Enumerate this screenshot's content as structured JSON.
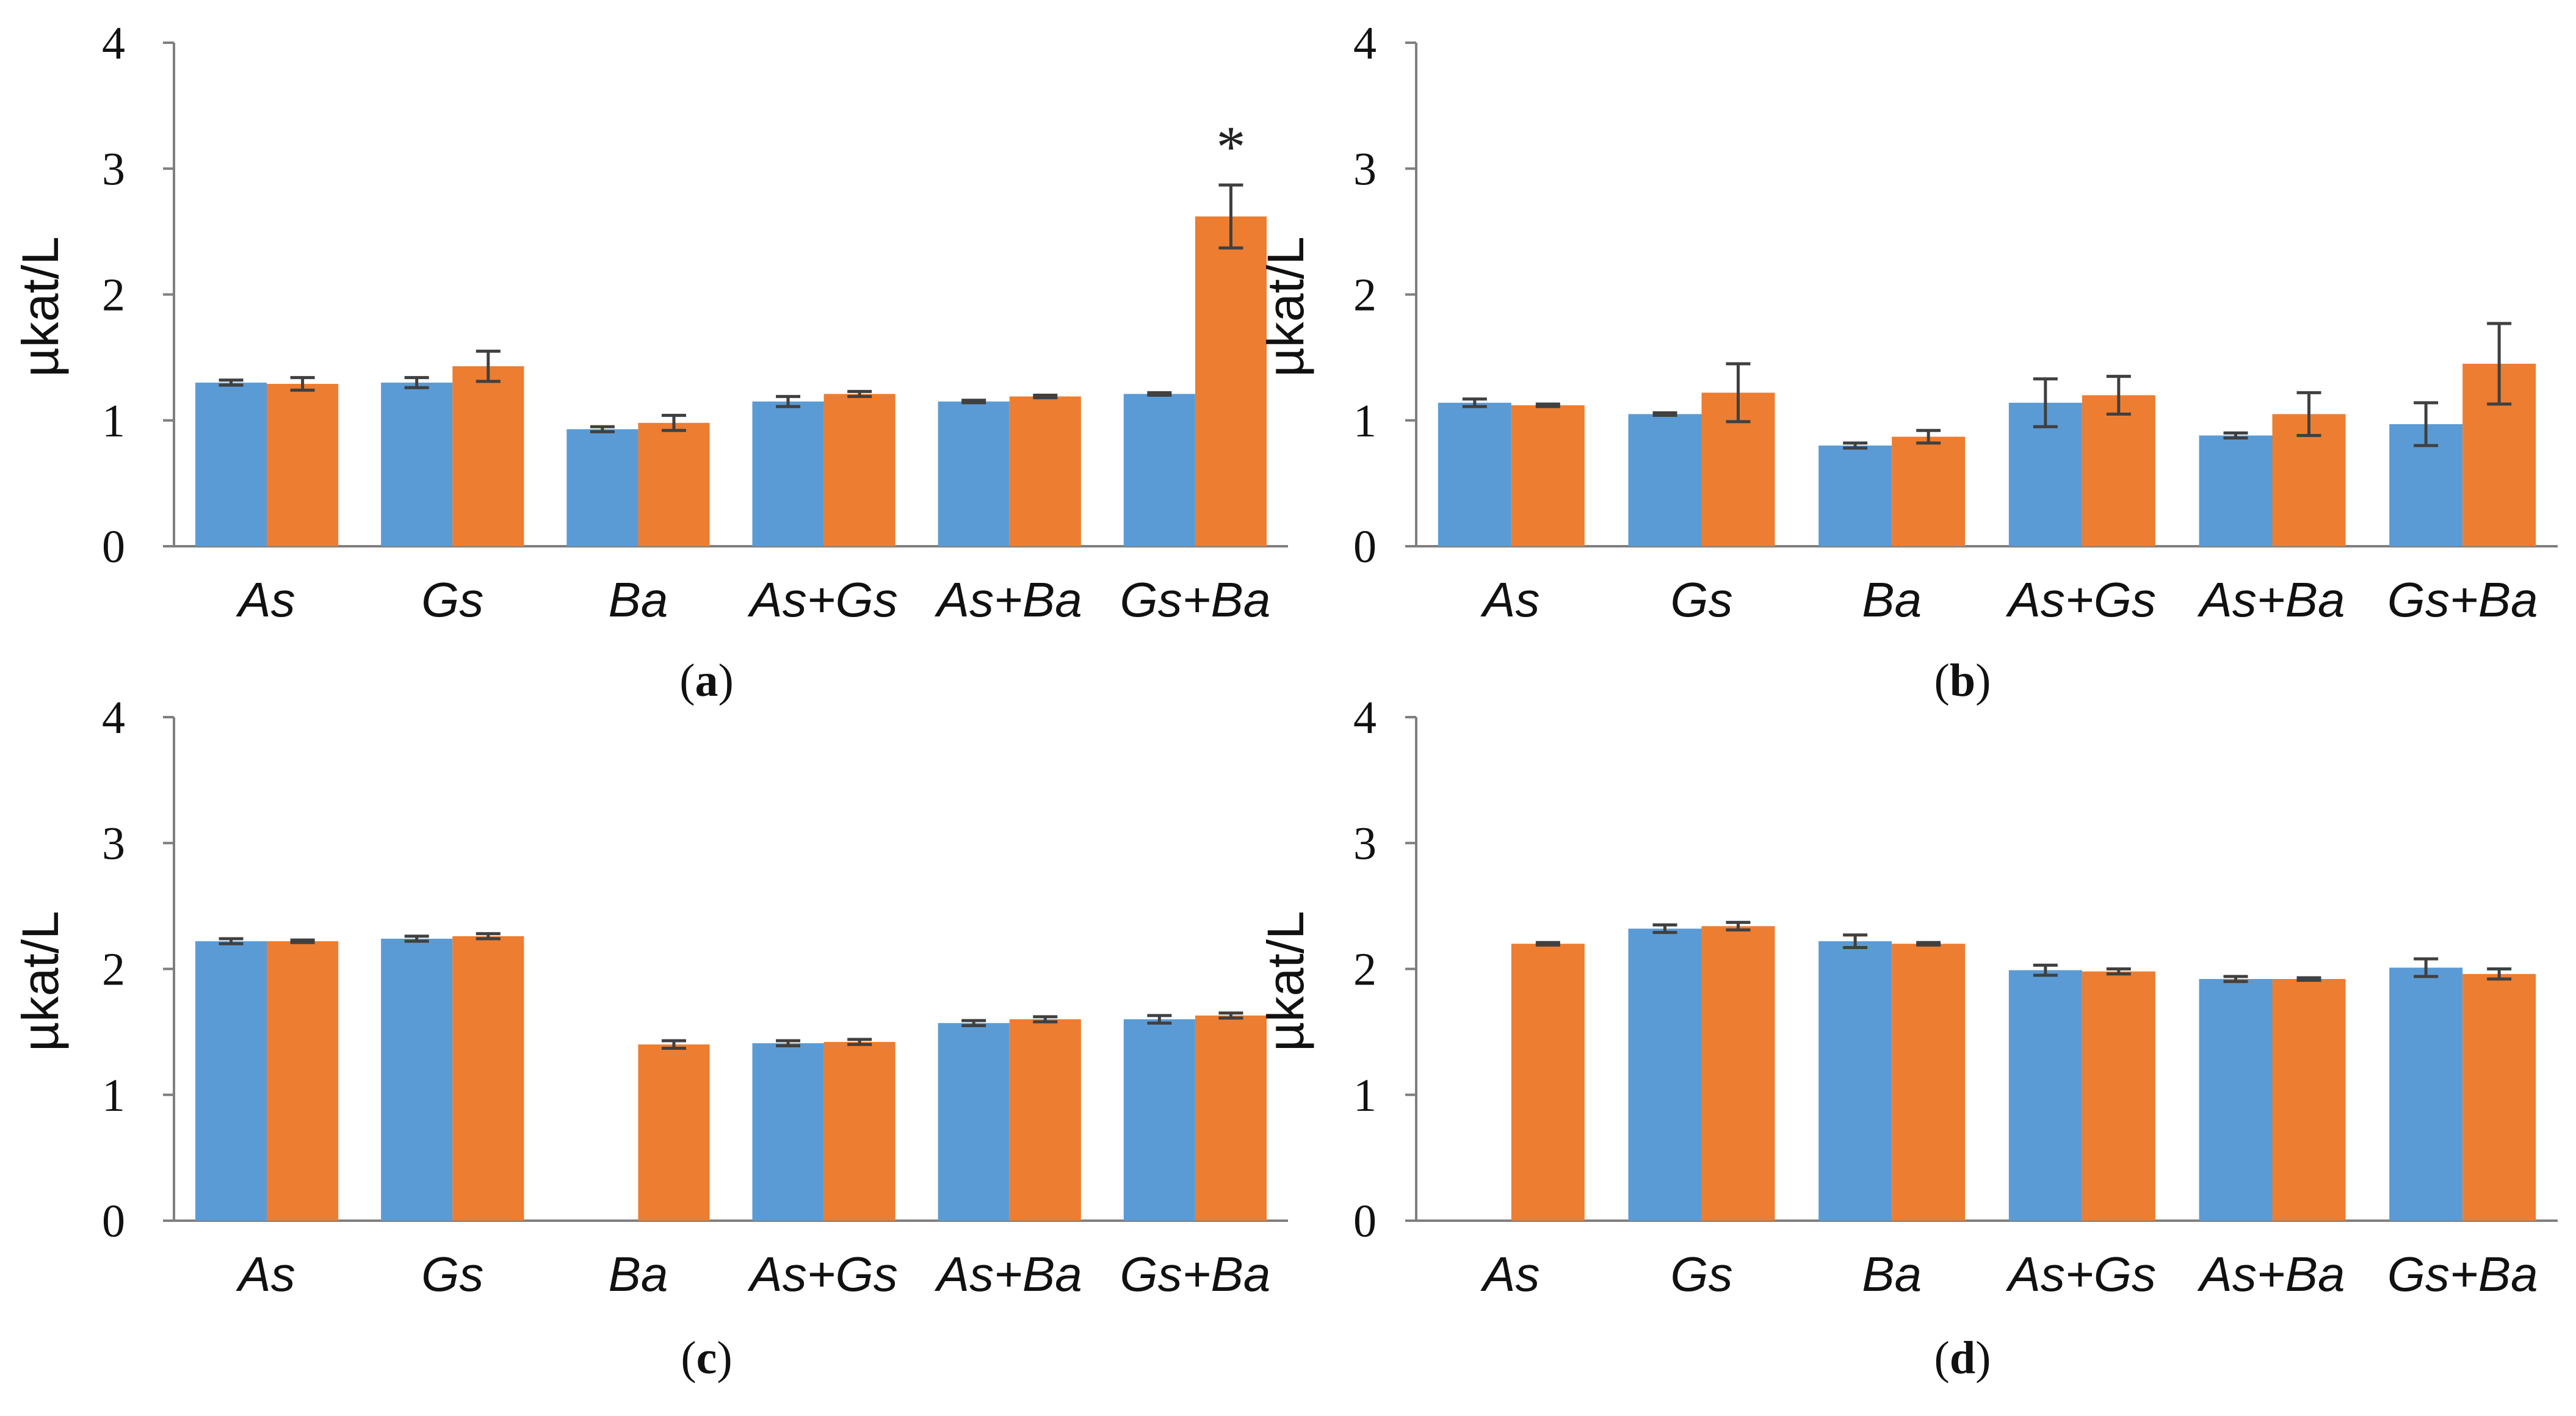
{
  "colors": {
    "series1": "#5b9bd5",
    "series2": "#ed7d31",
    "axis": "#7f7f7f",
    "error": "#404040"
  },
  "chart_data": [
    {
      "type": "bar",
      "panel": "a",
      "caption": "a",
      "categories": [
        "As",
        "Gs",
        "Ba",
        "As+Gs",
        "As+Ba",
        "Gs+Ba"
      ],
      "series": [
        {
          "name": "series 1",
          "values": [
            1.3,
            1.3,
            0.93,
            1.15,
            1.15,
            1.21
          ],
          "errors": [
            0.02,
            0.04,
            0.02,
            0.04,
            0.01,
            0.01
          ]
        },
        {
          "name": "series 2",
          "values": [
            1.29,
            1.43,
            0.98,
            1.21,
            1.19,
            2.62
          ],
          "errors": [
            0.05,
            0.12,
            0.06,
            0.02,
            0.01,
            0.25
          ]
        }
      ],
      "ylabel": "µkat/L",
      "yticks": [
        "0",
        "1",
        "2",
        "3",
        "4"
      ],
      "ylim": [
        0,
        4
      ],
      "annotations": [
        {
          "text": "*",
          "category": "Gs+Ba",
          "series": 2
        }
      ]
    },
    {
      "type": "bar",
      "panel": "b",
      "caption": "b",
      "categories": [
        "As",
        "Gs",
        "Ba",
        "As+Gs",
        "As+Ba",
        "Gs+Ba"
      ],
      "series": [
        {
          "name": "series 1",
          "values": [
            1.14,
            1.05,
            0.8,
            1.14,
            0.88,
            0.97
          ],
          "errors": [
            0.03,
            0.01,
            0.02,
            0.19,
            0.02,
            0.17
          ]
        },
        {
          "name": "series 2",
          "values": [
            1.12,
            1.22,
            0.87,
            1.2,
            1.05,
            1.45
          ],
          "errors": [
            0.01,
            0.23,
            0.05,
            0.15,
            0.17,
            0.32
          ]
        }
      ],
      "ylabel": "µkat/L",
      "yticks": [
        "0",
        "1",
        "2",
        "3",
        "4"
      ],
      "ylim": [
        0,
        4
      ],
      "annotations": []
    },
    {
      "type": "bar",
      "panel": "c",
      "caption": "c",
      "categories": [
        "As",
        "Gs",
        "Ba",
        "As+Gs",
        "As+Ba",
        "Gs+Ba"
      ],
      "series": [
        {
          "name": "series 1",
          "values": [
            2.22,
            2.24,
            null,
            1.41,
            1.57,
            1.6
          ],
          "errors": [
            0.02,
            0.02,
            null,
            0.02,
            0.02,
            0.03
          ]
        },
        {
          "name": "series 2",
          "values": [
            2.22,
            2.26,
            1.4,
            1.42,
            1.6,
            1.63
          ],
          "errors": [
            0.01,
            0.02,
            0.03,
            0.02,
            0.02,
            0.02
          ]
        }
      ],
      "ylabel": "µkat/L",
      "yticks": [
        "0",
        "1",
        "2",
        "3",
        "4"
      ],
      "ylim": [
        0,
        4
      ],
      "annotations": []
    },
    {
      "type": "bar",
      "panel": "d",
      "caption": "d",
      "categories": [
        "As",
        "Gs",
        "Ba",
        "As+Gs",
        "As+Ba",
        "Gs+Ba"
      ],
      "series": [
        {
          "name": "series 1",
          "values": [
            null,
            2.32,
            2.22,
            1.99,
            1.92,
            2.01
          ],
          "errors": [
            null,
            0.03,
            0.05,
            0.04,
            0.02,
            0.07
          ]
        },
        {
          "name": "series 2",
          "values": [
            2.2,
            2.34,
            2.2,
            1.98,
            1.92,
            1.96
          ],
          "errors": [
            0.01,
            0.03,
            0.01,
            0.02,
            0.01,
            0.04
          ]
        }
      ],
      "ylabel": "µkat/L",
      "yticks": [
        "0",
        "1",
        "2",
        "3",
        "4"
      ],
      "ylim": [
        0,
        4
      ],
      "annotations": []
    }
  ]
}
